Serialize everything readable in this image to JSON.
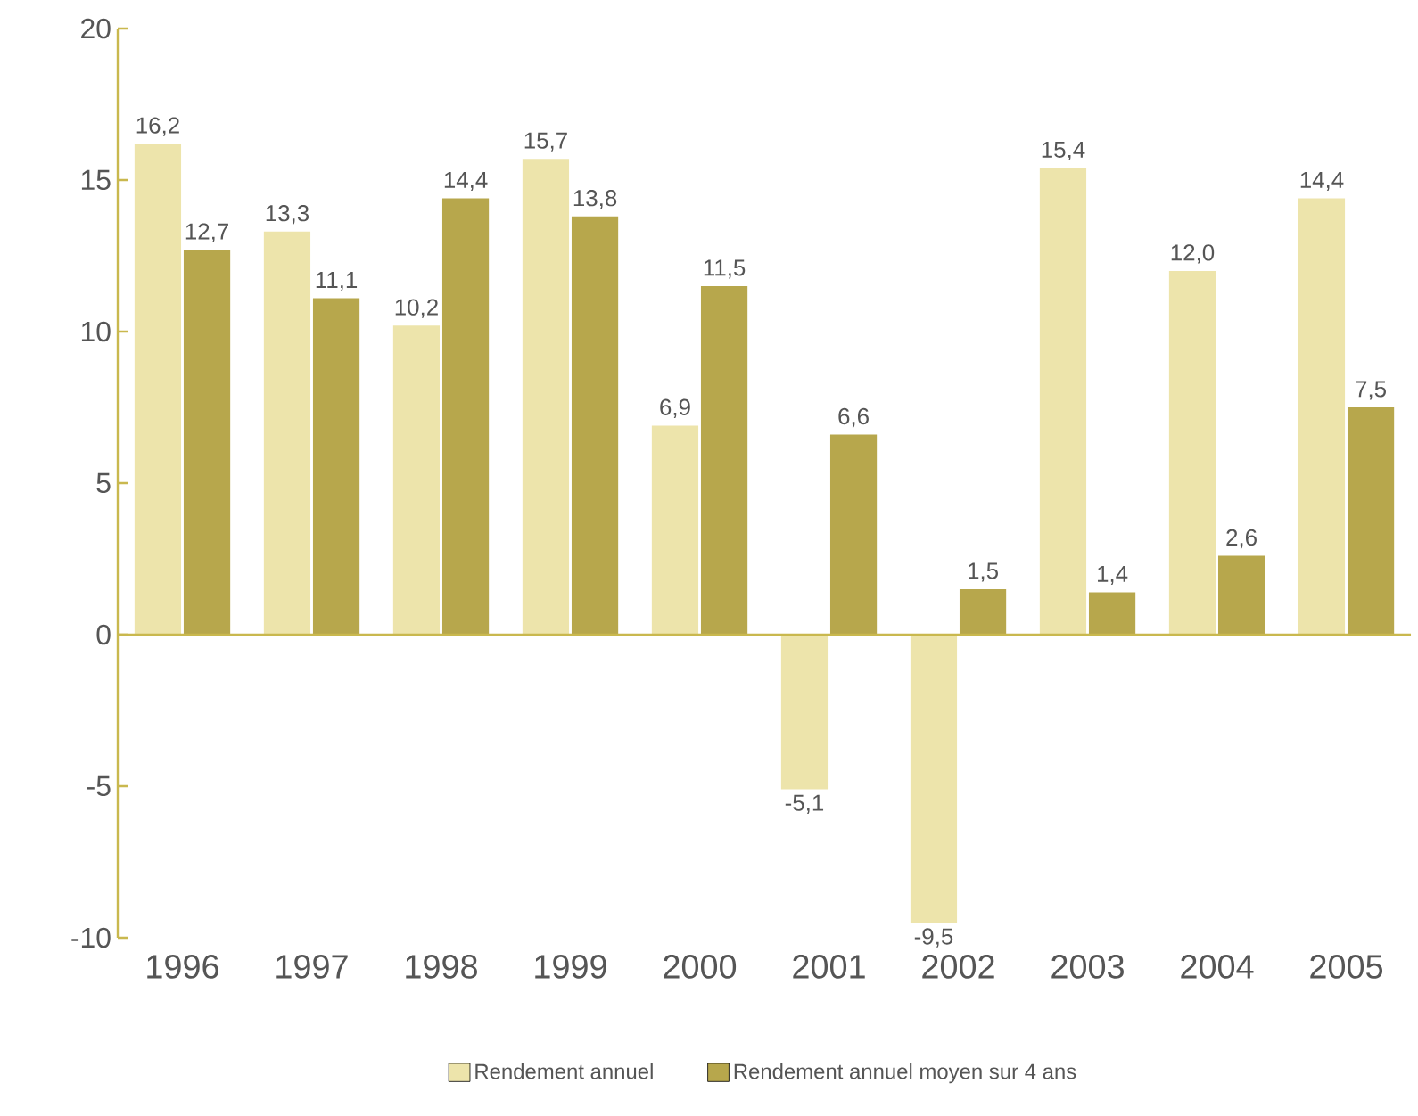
{
  "chart_data": {
    "type": "bar",
    "categories": [
      "1996",
      "1997",
      "1998",
      "1999",
      "2000",
      "2001",
      "2002",
      "2003",
      "2004",
      "2005"
    ],
    "series": [
      {
        "name": "Rendement annuel",
        "color": "#ede4ab",
        "values": [
          16.2,
          13.3,
          10.2,
          15.7,
          6.9,
          -5.1,
          -9.5,
          15.4,
          12.0,
          14.4
        ],
        "value_labels": [
          "16,2",
          "13,3",
          "10,2",
          "15,7",
          "6,9",
          "-5,1",
          "-9,5",
          "15,4",
          "12,0",
          "14,4"
        ]
      },
      {
        "name": "Rendement annuel moyen sur 4 ans",
        "color": "#b7a74c",
        "values": [
          12.7,
          11.1,
          14.4,
          13.8,
          11.5,
          6.6,
          1.5,
          1.4,
          2.6,
          7.5
        ],
        "value_labels": [
          "12,7",
          "11,1",
          "14,4",
          "13,8",
          "11,5",
          "6,6",
          "1,5",
          "1,4",
          "2,6",
          "7,5"
        ]
      }
    ],
    "ylim": [
      -10,
      20
    ],
    "yticks": [
      -10,
      -5,
      0,
      5,
      10,
      15,
      20
    ],
    "ref_lines": [
      {
        "axis": "y",
        "value": 0,
        "color": "#c9b84e"
      }
    ],
    "grid": false,
    "legend": "bottom"
  }
}
